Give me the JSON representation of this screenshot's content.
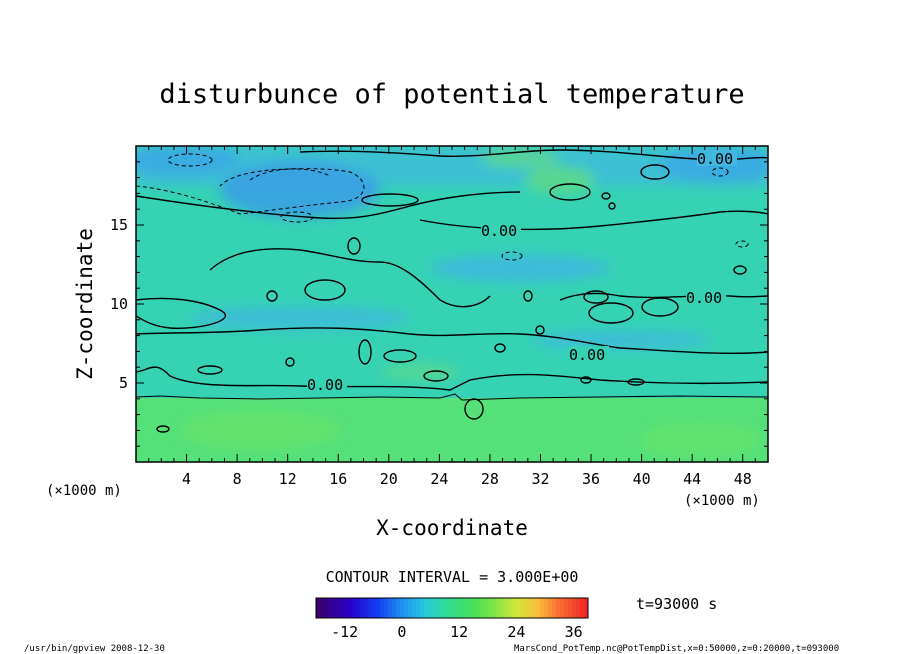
{
  "chart_data": {
    "type": "heatmap",
    "title": "disturbunce of potential temperature",
    "xlabel": "X-coordinate",
    "ylabel": "Z-coordinate",
    "x_unit": "(×1000 m)",
    "z_unit": "(×1000 m)",
    "xlim": [
      0,
      50
    ],
    "ylim": [
      0,
      20
    ],
    "x_ticks": [
      4,
      8,
      12,
      16,
      20,
      24,
      28,
      32,
      36,
      40,
      44,
      48
    ],
    "y_ticks": [
      5,
      10,
      15
    ],
    "contour_interval": "CONTOUR INTERVAL = 3.000E+00",
    "contour_labels": [
      "0.00",
      "0.00",
      "0.00",
      "0.00",
      "0.00"
    ],
    "colorbar": {
      "min": -18,
      "max": 39,
      "ticks": [
        "-12",
        "0",
        "12",
        "24",
        "36"
      ]
    },
    "time_label": "t=93000 s",
    "footer_left": "/usr/bin/gpview  2008-12-30",
    "footer_right": "MarsCond_PotTemp.nc@PotTempDist,x=0:50000,z=0:20000,t=093000",
    "colors": {
      "lower_layer": "#55e07a",
      "upper_base": "#35d2b4",
      "cool_patch": "#3aa7e6",
      "warm_patch": "#7ee063"
    }
  }
}
